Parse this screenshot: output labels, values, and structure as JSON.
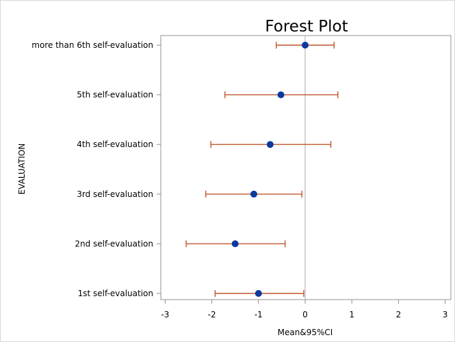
{
  "chart_data": {
    "type": "scatter",
    "subtype": "forest-plot",
    "title": "Forest Plot",
    "xlabel": "Mean&95%CI",
    "ylabel": "EVALUATION",
    "xlim": [
      -3.1,
      3.1
    ],
    "xticks": [
      -3,
      -2,
      -1,
      0,
      1,
      2,
      3
    ],
    "reference_line_x": 0,
    "grid": false,
    "legend": "none",
    "colors": {
      "point": "#0a3a9e",
      "ci": "#c0552b",
      "reference_line": "#b8b8b8",
      "axis": "#909090"
    },
    "categories": [
      "more than 6th self-evaluation",
      "5th self-evaluation",
      "4th self-evaluation",
      "3rd self-evaluation",
      "2nd self-evaluation",
      "1st self-evaluation"
    ],
    "means": [
      0.0,
      -0.52,
      -0.75,
      -1.1,
      -1.5,
      -1.0
    ],
    "lower": [
      -0.62,
      -1.72,
      -2.02,
      -2.13,
      -2.55,
      -1.93
    ],
    "upper": [
      0.62,
      0.7,
      0.55,
      -0.07,
      -0.43,
      -0.03
    ]
  }
}
